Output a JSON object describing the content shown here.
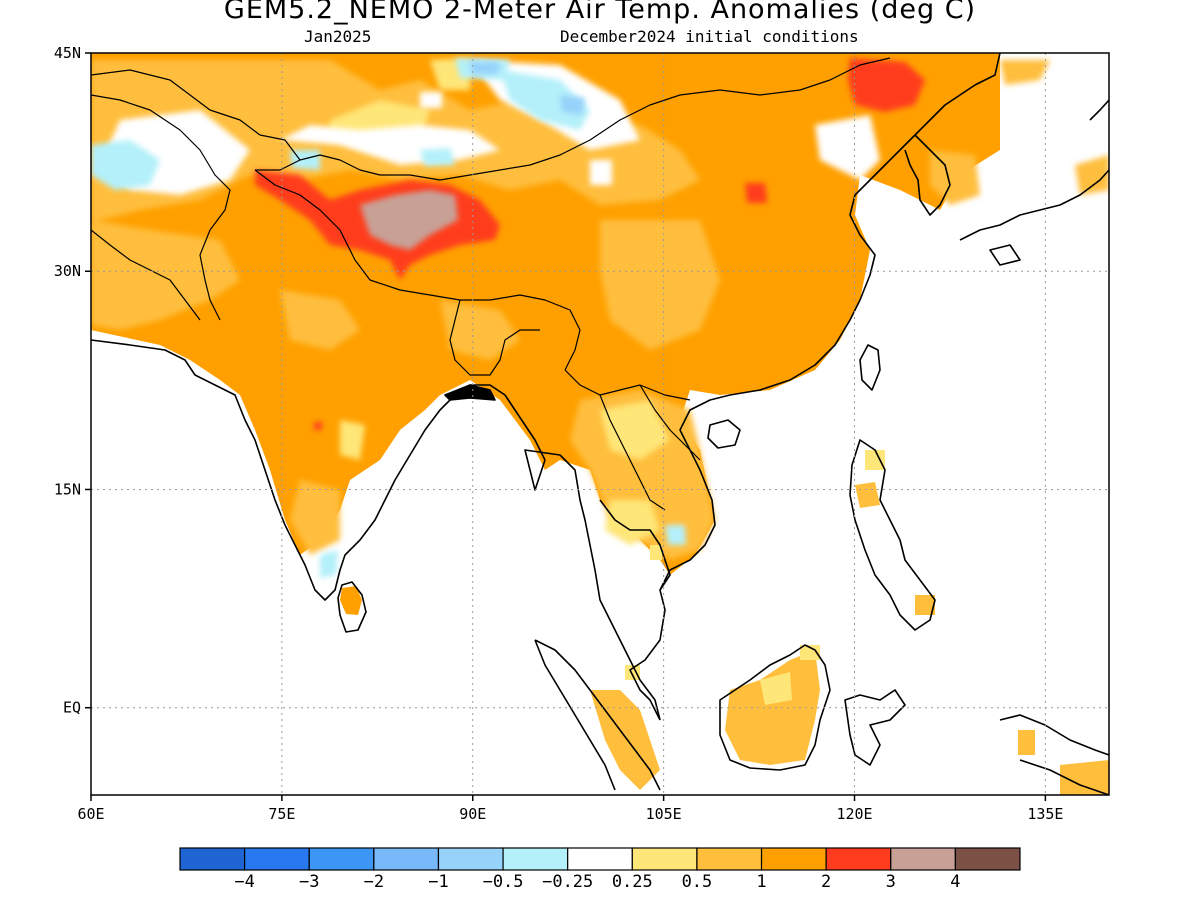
{
  "title": "GEM5.2_NEMO 2-Meter Air Temp. Anomalies (deg C)",
  "subtitle_left": "Jan2025",
  "subtitle_right": "December2024 initial conditions",
  "map": {
    "lon_range": [
      60,
      140
    ],
    "lat_range": [
      -6,
      45
    ],
    "lat_ticks": [
      {
        "value": 45,
        "label": "45N"
      },
      {
        "value": 30,
        "label": "30N"
      },
      {
        "value": 15,
        "label": "15N"
      },
      {
        "value": 0,
        "label": "EQ"
      }
    ],
    "lon_ticks": [
      {
        "value": 60,
        "label": "60E"
      },
      {
        "value": 75,
        "label": "75E"
      },
      {
        "value": 90,
        "label": "90E"
      },
      {
        "value": 105,
        "label": "105E"
      },
      {
        "value": 120,
        "label": "120E"
      },
      {
        "value": 135,
        "label": "135E"
      }
    ],
    "grid": "dotted",
    "ocean_color": "#ffffff",
    "coastline_color": "#000000"
  },
  "colorbar": {
    "colors": [
      "#1e64d2",
      "#2878f0",
      "#3c96f5",
      "#78b9fa",
      "#96d2fa",
      "#b4f0fa",
      "#ffffff",
      "#ffe678",
      "#ffbe3c",
      "#ffa000",
      "#ff3c1e",
      "#c8a096",
      "#7d5046"
    ],
    "labels": [
      "-4",
      "-3",
      "-2",
      "-1",
      "-0.5",
      "-0.25",
      "0.25",
      "0.5",
      "1",
      "2",
      "3",
      "4"
    ]
  }
}
